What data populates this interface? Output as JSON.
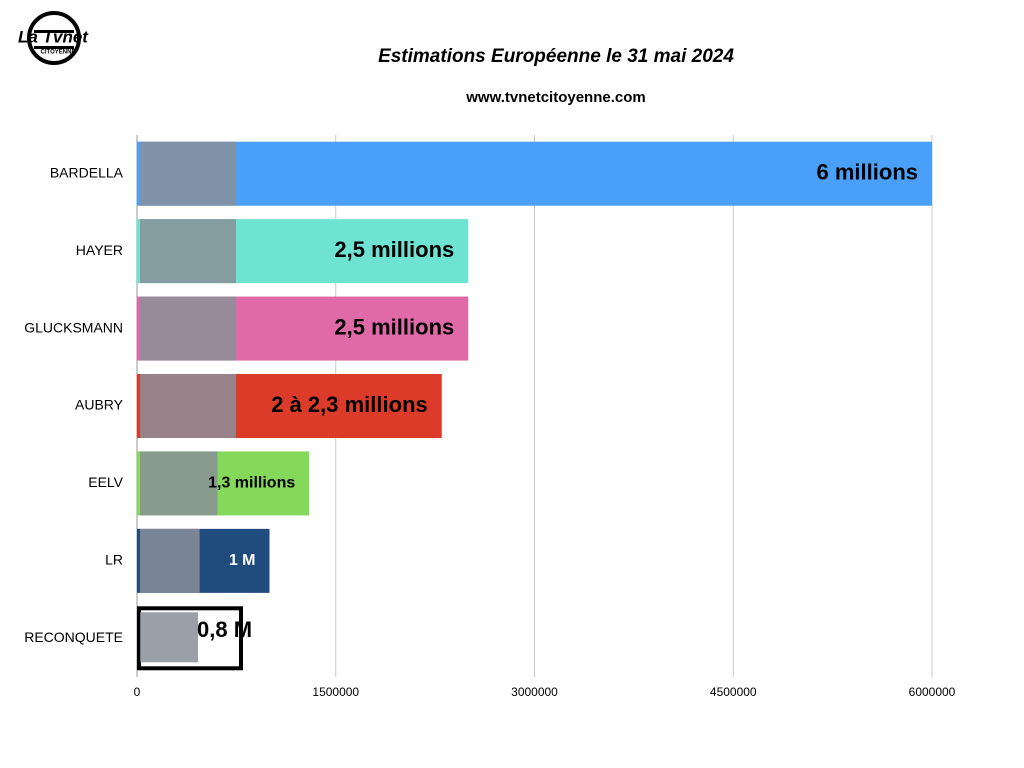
{
  "logo": {
    "name": "La Tvnet",
    "subtitle": "CITOYENNE"
  },
  "chart_data": {
    "type": "hbar",
    "title": "Estimations Européenne le 31 mai 2024",
    "subtitle": "www.tvnetcitoyenne.com",
    "categories": [
      "BARDELLA",
      "HAYER",
      "GLUCKSMANN",
      "AUBRY",
      "EELV",
      "LR",
      "RECONQUETE"
    ],
    "values": [
      6000000,
      2500000,
      2500000,
      2300000,
      1300000,
      1000000,
      800000
    ],
    "value_labels": [
      "6 millions",
      "2,5 millions",
      "2,5 millions",
      "2 à 2,3 millions",
      "1,3 millions",
      "1 M",
      "0,8 M"
    ],
    "colors": [
      "#4aa0f8",
      "#6ee3d2",
      "#e06aa8",
      "#dc3b2a",
      "#84d85a",
      "#1f4b7d",
      "#ffffff"
    ],
    "xlim": [
      0,
      6000000
    ],
    "xticks": [
      0,
      1500000,
      3000000,
      4500000,
      6000000
    ],
    "grid": true
  }
}
